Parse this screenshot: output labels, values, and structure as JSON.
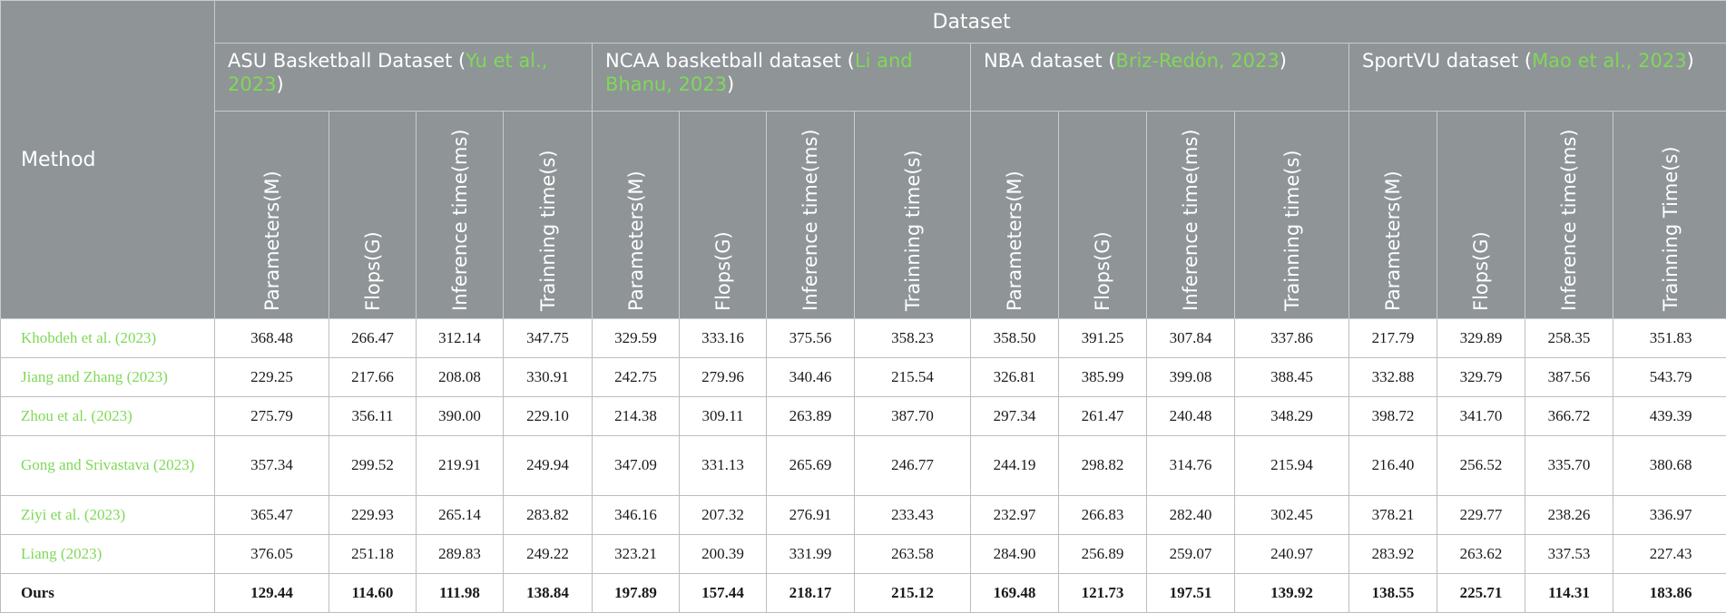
{
  "header": {
    "method_label": "Method",
    "dataset_label": "Dataset",
    "groups": [
      {
        "name": "ASU Basketball Dataset (",
        "cite": "Yu et al., 2023",
        "close": ")"
      },
      {
        "name": "NCAA basketball dataset (",
        "cite": "Li and Bhanu, 2023",
        "close": ")"
      },
      {
        "name": "NBA dataset (",
        "cite": "Briz-Redón, 2023",
        "close": ")"
      },
      {
        "name": "SportVU dataset (",
        "cite": "Mao et al., 2023",
        "close": ")"
      }
    ],
    "metrics": [
      [
        "Parameters(M)",
        "Flops(G)",
        "Inference time(ms)",
        "Trainning time(s)"
      ],
      [
        "Parameters(M)",
        "Flops(G)",
        "Inference time(ms)",
        "Trainning time(s)"
      ],
      [
        "Parameters(M)",
        "Flops(G)",
        "Inference time(ms)",
        "Trainning time(s)"
      ],
      [
        "Parameters(M)",
        "Flops(G)",
        "Inference time(ms)",
        "Trainning Time(s)"
      ]
    ]
  },
  "rows": [
    {
      "method": "Khobdeh et al. (",
      "year": "2023",
      "close": ")",
      "values": [
        "368.48",
        "266.47",
        "312.14",
        "347.75",
        "329.59",
        "333.16",
        "375.56",
        "358.23",
        "358.50",
        "391.25",
        "307.84",
        "337.86",
        "217.79",
        "329.89",
        "258.35",
        "351.83"
      ]
    },
    {
      "method": "Jiang and Zhang (",
      "year": "2023",
      "close": ")",
      "values": [
        "229.25",
        "217.66",
        "208.08",
        "330.91",
        "242.75",
        "279.96",
        "340.46",
        "215.54",
        "326.81",
        "385.99",
        "399.08",
        "388.45",
        "332.88",
        "329.79",
        "387.56",
        "543.79"
      ]
    },
    {
      "method": "Zhou et al. (",
      "year": "2023",
      "close": ")",
      "values": [
        "275.79",
        "356.11",
        "390.00",
        "229.10",
        "214.38",
        "309.11",
        "263.89",
        "387.70",
        "297.34",
        "261.47",
        "240.48",
        "348.29",
        "398.72",
        "341.70",
        "366.72",
        "439.39"
      ]
    },
    {
      "method": "Gong and Srivastava (",
      "year": "2023",
      "close": ")",
      "values": [
        "357.34",
        "299.52",
        "219.91",
        "249.94",
        "347.09",
        "331.13",
        "265.69",
        "246.77",
        "244.19",
        "298.82",
        "314.76",
        "215.94",
        "216.40",
        "256.52",
        "335.70",
        "380.68"
      ]
    },
    {
      "method": "Ziyi et al. (",
      "year": "2023",
      "close": ")",
      "values": [
        "365.47",
        "229.93",
        "265.14",
        "283.82",
        "346.16",
        "207.32",
        "276.91",
        "233.43",
        "232.97",
        "266.83",
        "282.40",
        "302.45",
        "378.21",
        "229.77",
        "238.26",
        "336.97"
      ]
    },
    {
      "method": "Liang (",
      "year": "2023",
      "close": ")",
      "values": [
        "376.05",
        "251.18",
        "289.83",
        "249.22",
        "323.21",
        "200.39",
        "331.99",
        "263.58",
        "284.90",
        "256.89",
        "259.07",
        "240.97",
        "283.92",
        "263.62",
        "337.53",
        "227.43"
      ]
    },
    {
      "method": "Ours",
      "year": "",
      "close": "",
      "values": [
        "129.44",
        "114.60",
        "111.98",
        "138.84",
        "197.89",
        "157.44",
        "218.17",
        "215.12",
        "169.48",
        "121.73",
        "197.51",
        "139.92",
        "138.55",
        "225.71",
        "114.31",
        "183.86"
      ]
    }
  ]
}
